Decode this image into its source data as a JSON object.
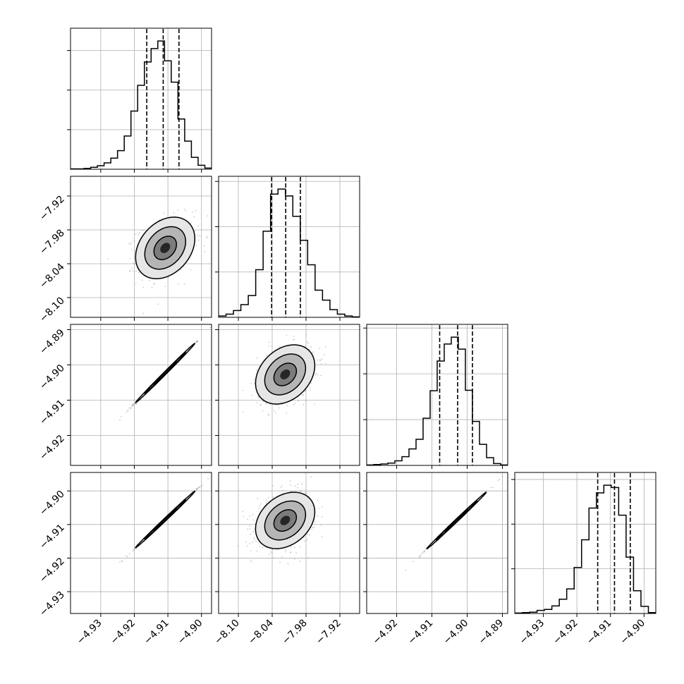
{
  "chart_data": {
    "type": "corner",
    "n_params": 4,
    "colors": {
      "ink": "#000000",
      "grid": "#b0b0b0",
      "points": "#9a9a9a",
      "frame": "#000000"
    },
    "grid": true,
    "params": [
      {
        "range": [
          -4.939,
          -4.897
        ],
        "ticks": [
          -4.93,
          -4.92,
          -4.91,
          -4.9
        ],
        "tick_labels": [
          "−4.93",
          "−4.92",
          "−4.91",
          "−4.90"
        ]
      },
      {
        "range": [
          -8.135,
          -7.885
        ],
        "ticks": [
          -8.1,
          -8.04,
          -7.98,
          -7.92
        ],
        "tick_labels": [
          "−8.10",
          "−8.04",
          "−7.98",
          "−7.92"
        ]
      },
      {
        "range": [
          -4.9285,
          -4.8885
        ],
        "ticks": [
          -4.92,
          -4.91,
          -4.9,
          -4.89
        ],
        "tick_labels": [
          "−4.92",
          "−4.91",
          "−4.90",
          "−4.89"
        ]
      },
      {
        "range": [
          -4.9385,
          -4.8965
        ],
        "ticks": [
          -4.93,
          -4.92,
          -4.91,
          -4.9
        ],
        "tick_labels": [
          "−4.93",
          "−4.92",
          "−4.91",
          "−4.90"
        ]
      }
    ],
    "y_axis_params": [
      {
        "range": [
          -4.939,
          -4.897
        ],
        "ticks": [
          -4.93,
          -4.92,
          -4.91,
          -4.9
        ],
        "tick_labels": [
          "−4.93",
          "−4.92",
          "−4.91",
          "−4.90"
        ]
      },
      {
        "range": [
          -8.135,
          -7.885
        ],
        "ticks": [
          -8.1,
          -8.04,
          -7.98,
          -7.92
        ],
        "tick_labels": [
          "−8.10",
          "−8.04",
          "−7.98",
          "−7.92"
        ]
      },
      {
        "range": [
          -4.9285,
          -4.8885
        ],
        "ticks": [
          -4.92,
          -4.91,
          -4.9,
          -4.89
        ],
        "tick_labels": [
          "−4.92",
          "−4.91",
          "−4.90",
          "−4.89"
        ]
      },
      {
        "range": [
          -4.9365,
          -4.8945
        ],
        "ticks": [
          -4.93,
          -4.92,
          -4.91,
          -4.9
        ],
        "tick_labels": [
          "−4.93",
          "−4.92",
          "−4.91",
          "−4.90"
        ]
      }
    ],
    "histograms": [
      {
        "quantiles": [
          -4.9163,
          -4.9114,
          -4.9067
        ],
        "counts": [
          1,
          1,
          2,
          5,
          9,
          16,
          28,
          47,
          84,
          147,
          212,
          271,
          305,
          324,
          274,
          220,
          127,
          71,
          30,
          10,
          3
        ]
      },
      {
        "quantiles": [
          -8.041,
          -8.016,
          -7.99
        ],
        "counts": [
          3,
          7,
          15,
          28,
          48,
          105,
          190,
          272,
          283,
          268,
          223,
          170,
          116,
          60,
          38,
          17,
          7,
          3,
          1
        ]
      },
      {
        "quantiles": [
          -4.9078,
          -4.9027,
          -4.8985
        ],
        "counts": [
          1,
          2,
          3,
          5,
          10,
          19,
          36,
          57,
          103,
          163,
          228,
          265,
          280,
          254,
          164,
          96,
          46,
          17,
          4,
          1
        ]
      },
      {
        "quantiles": [
          -4.9138,
          -4.9088,
          -4.9041
        ],
        "counts": [
          1,
          2,
          3,
          7,
          9,
          17,
          32,
          55,
          103,
          165,
          236,
          270,
          287,
          282,
          220,
          126,
          51,
          16,
          2
        ]
      }
    ],
    "pairs": [
      {
        "row": 1,
        "col": 0,
        "center": [
          -4.9108,
          -8.012
        ],
        "sigma": [
          0.0042,
          0.026
        ],
        "rho": 0.3
      },
      {
        "row": 2,
        "col": 0,
        "center": [
          -4.9108,
          -4.9023
        ],
        "sigma": [
          0.0042,
          0.004
        ],
        "rho": 0.998
      },
      {
        "row": 2,
        "col": 1,
        "center": [
          -8.017,
          -4.9027
        ],
        "sigma": [
          0.025,
          0.004
        ],
        "rho": 0.3
      },
      {
        "row": 3,
        "col": 0,
        "center": [
          -4.9108,
          -4.9085
        ],
        "sigma": [
          0.0042,
          0.004
        ],
        "rho": 0.998
      },
      {
        "row": 3,
        "col": 1,
        "center": [
          -8.017,
          -4.9088
        ],
        "sigma": [
          0.025,
          0.004
        ],
        "rho": 0.3
      },
      {
        "row": 3,
        "col": 2,
        "center": [
          -4.903,
          -4.9088
        ],
        "sigma": [
          0.004,
          0.004
        ],
        "rho": 0.998
      }
    ]
  }
}
